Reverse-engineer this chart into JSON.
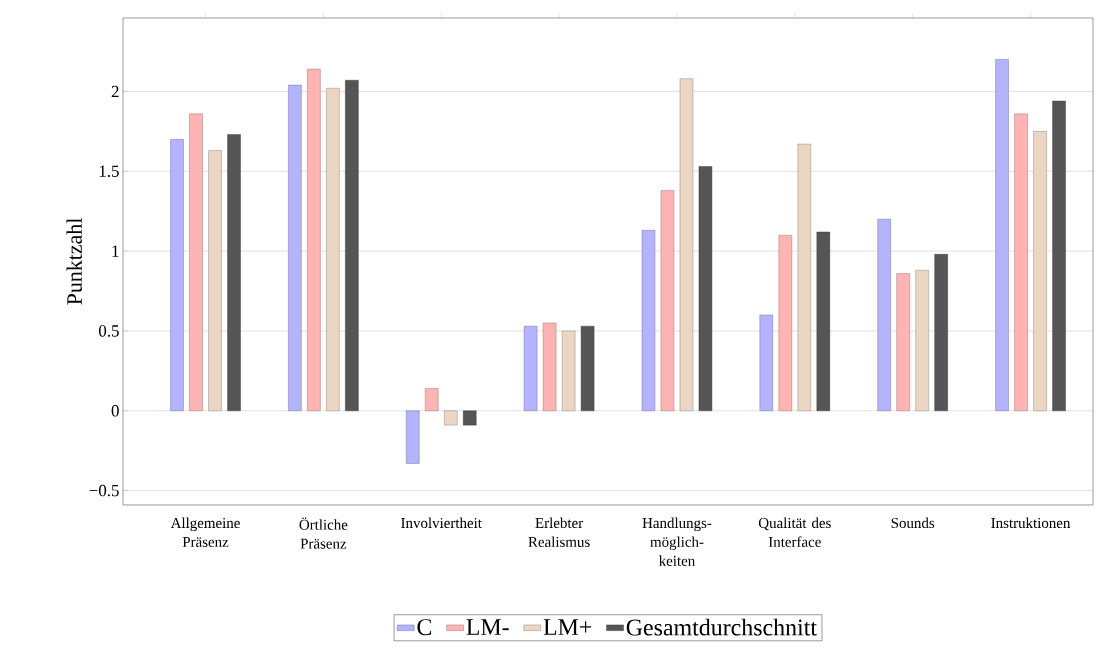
{
  "chart_data": {
    "type": "bar",
    "ylabel": "Punktzahl",
    "categories": [
      "Allgemeine Präsenz",
      "Örtliche Präsenz",
      "Involviertheit",
      "Erlebter Realismus",
      "Handlungs-möglich-keiten",
      "Qualität des Interface",
      "Sounds",
      "Instruktionen"
    ],
    "series": [
      {
        "name": "C",
        "color": "#b3b3ff",
        "values": [
          1.7,
          2.04,
          -0.33,
          0.53,
          1.13,
          0.6,
          1.2,
          2.2
        ]
      },
      {
        "name": "LM-",
        "color": "#ffb3b3",
        "values": [
          1.86,
          2.14,
          0.14,
          0.55,
          1.38,
          1.1,
          0.86,
          1.86
        ]
      },
      {
        "name": "LM+",
        "color": "#ead6c2",
        "values": [
          1.63,
          2.02,
          -0.09,
          0.5,
          2.08,
          1.67,
          0.88,
          1.75
        ]
      },
      {
        "name": "Gesamtdurchschnitt",
        "color": "#555555",
        "values": [
          1.73,
          2.07,
          -0.09,
          0.53,
          1.53,
          1.12,
          0.98,
          1.94
        ]
      }
    ],
    "ylim": [
      -0.59,
      2.46
    ],
    "yticks": [
      {
        "value": -0.5,
        "label": "−0.5"
      },
      0,
      0.5,
      1,
      1.5,
      2
    ],
    "grid": "y",
    "legend": "bottom"
  }
}
